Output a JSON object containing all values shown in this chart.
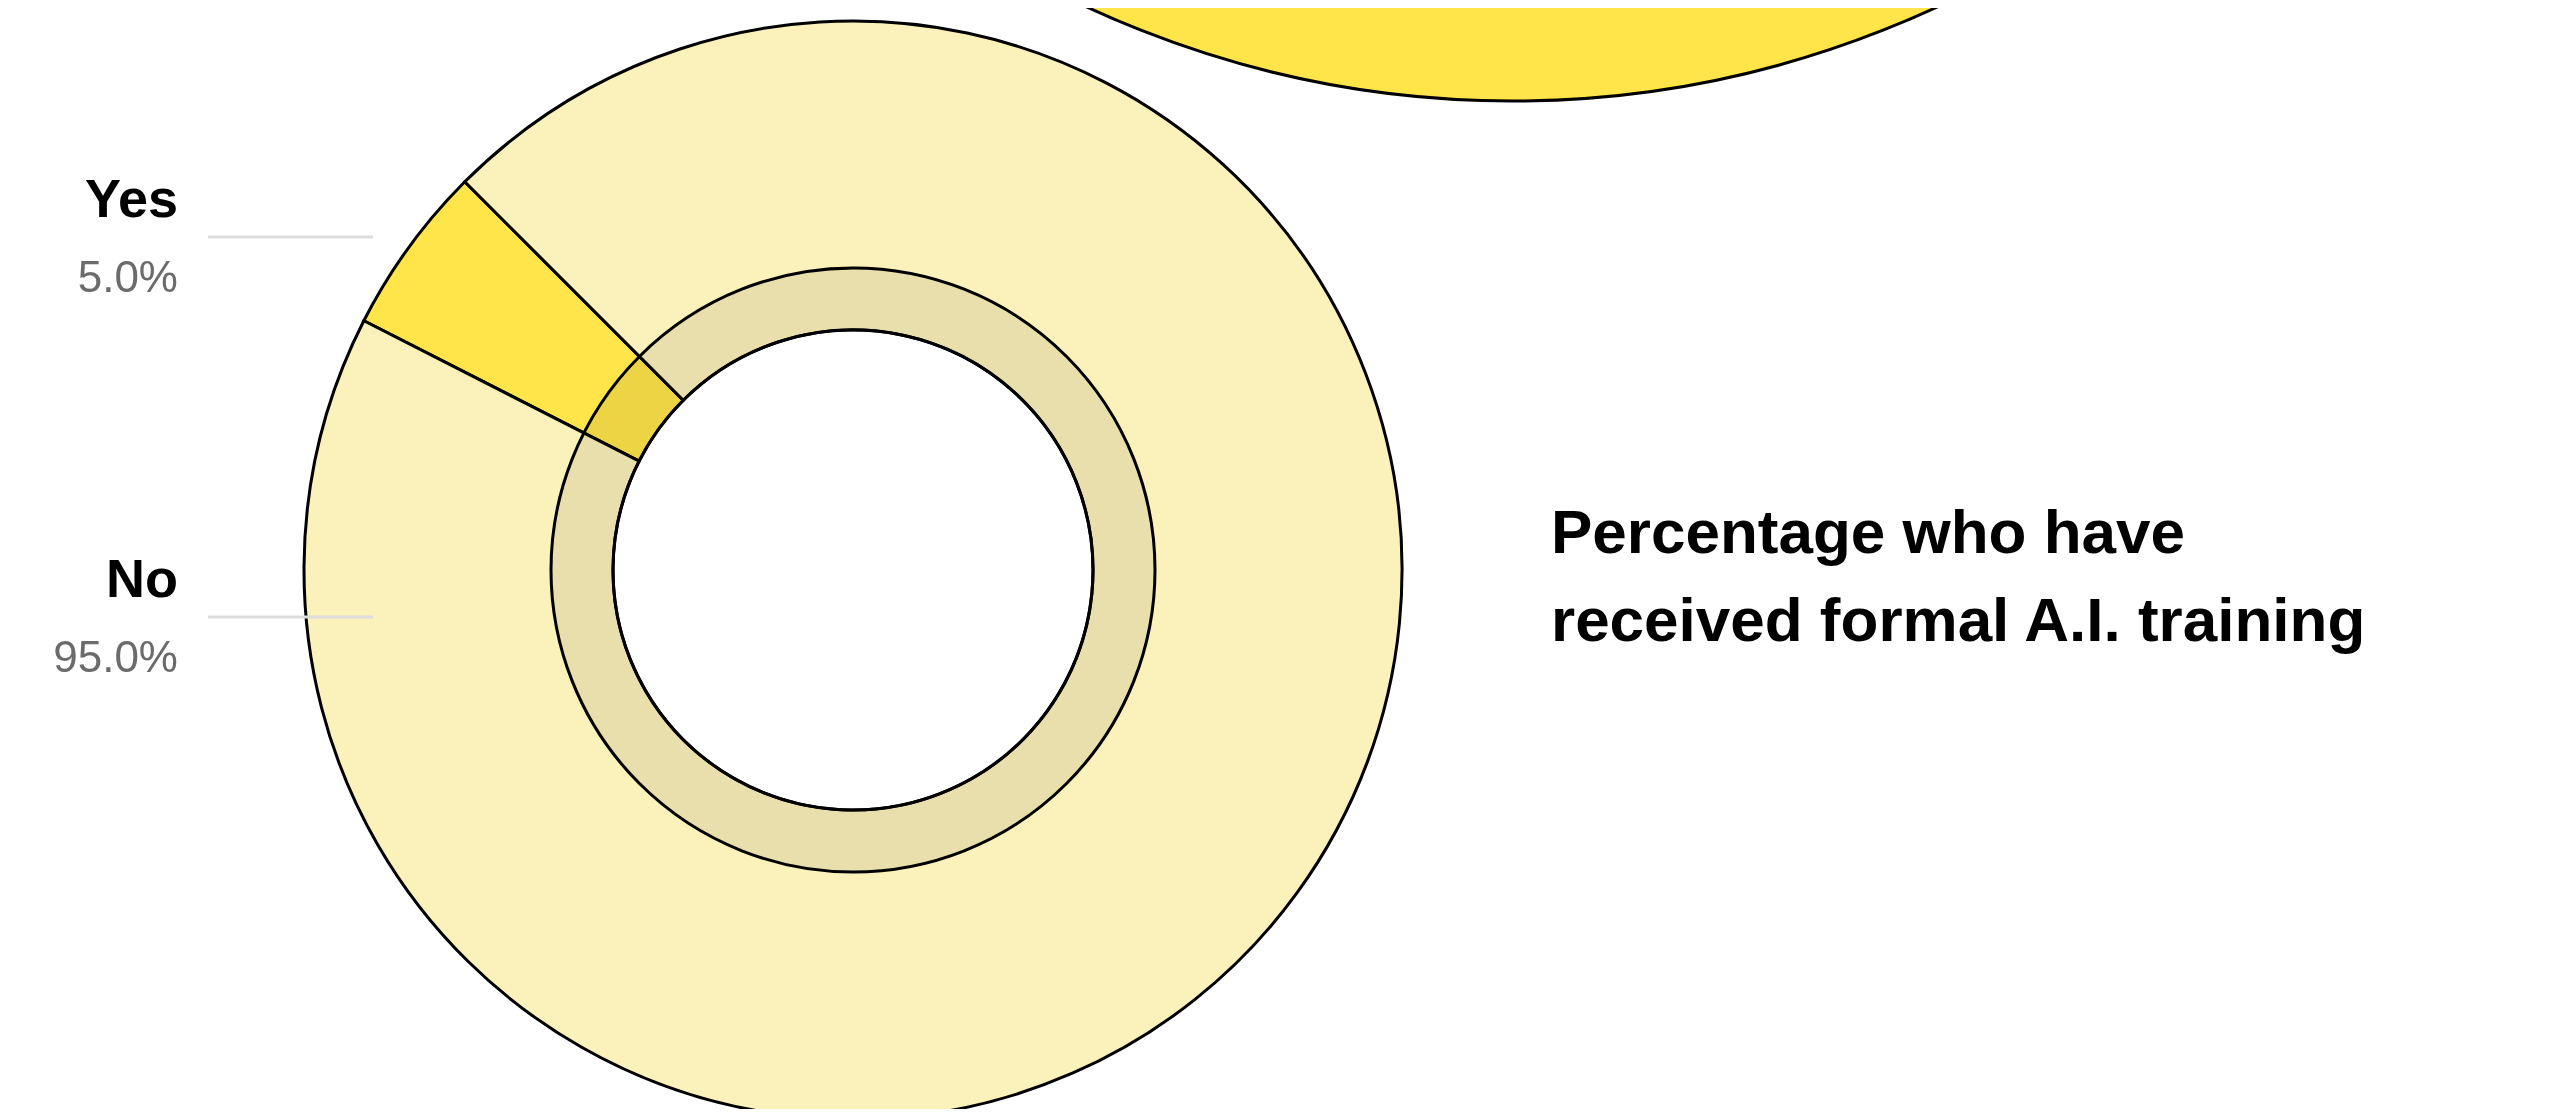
{
  "chart_data": {
    "type": "donut",
    "title": "Percentage who have received formal A.I. training",
    "categories": [
      "Yes",
      "No"
    ],
    "values": [
      5.0,
      95.0
    ],
    "colors": [
      "#ffe54a",
      "#fbf1bb"
    ],
    "value_labels": [
      "5.0%",
      "95.0%"
    ]
  }
}
